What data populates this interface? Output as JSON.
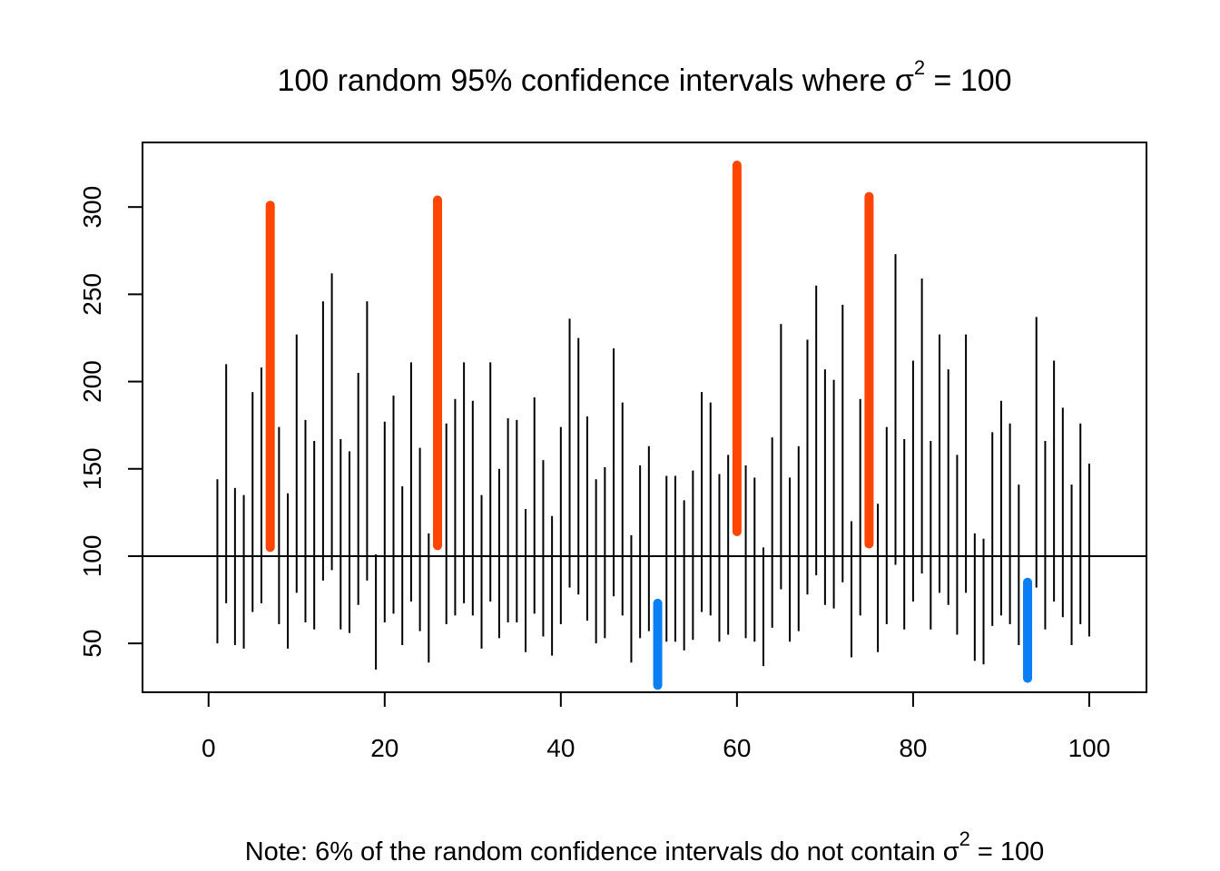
{
  "chart_data": {
    "type": "interval",
    "title": {
      "main": "100 random 95% confidence intervals where ",
      "symbol": "σ",
      "sup": "2",
      "rest": " = 100"
    },
    "note": {
      "main": "Note: 6% of the random confidence intervals do not contain ",
      "symbol": "σ",
      "sup": "2",
      "rest": " = 100"
    },
    "xlim": [
      -7.5,
      106.5
    ],
    "ylim": [
      22,
      337
    ],
    "x_ticks": [
      0,
      20,
      40,
      60,
      80,
      100
    ],
    "y_ticks": [
      50,
      100,
      150,
      200,
      250,
      300
    ],
    "reference_line": 100,
    "colors": {
      "contains": "#000000",
      "above": "#ff4500",
      "below": "#0a7ef5",
      "axis": "#000000"
    },
    "intervals": [
      [
        1,
        50,
        144
      ],
      [
        2,
        73,
        210
      ],
      [
        3,
        49,
        139
      ],
      [
        4,
        47,
        135
      ],
      [
        5,
        68,
        194
      ],
      [
        6,
        73,
        208
      ],
      [
        7,
        105,
        301
      ],
      [
        8,
        61,
        174
      ],
      [
        9,
        47,
        136
      ],
      [
        10,
        79,
        227
      ],
      [
        11,
        62,
        178
      ],
      [
        12,
        58,
        166
      ],
      [
        13,
        86,
        246
      ],
      [
        14,
        92,
        262
      ],
      [
        15,
        58,
        167
      ],
      [
        16,
        56,
        160
      ],
      [
        17,
        72,
        205
      ],
      [
        18,
        86,
        246
      ],
      [
        19,
        35,
        101
      ],
      [
        20,
        62,
        177
      ],
      [
        21,
        67,
        192
      ],
      [
        22,
        49,
        140
      ],
      [
        23,
        74,
        211
      ],
      [
        24,
        57,
        162
      ],
      [
        25,
        39,
        113
      ],
      [
        26,
        106,
        304
      ],
      [
        27,
        61,
        176
      ],
      [
        28,
        66,
        190
      ],
      [
        29,
        73,
        211
      ],
      [
        30,
        66,
        189
      ],
      [
        31,
        47,
        135
      ],
      [
        32,
        74,
        211
      ],
      [
        33,
        53,
        150
      ],
      [
        34,
        62,
        179
      ],
      [
        35,
        62,
        178
      ],
      [
        36,
        45,
        127
      ],
      [
        37,
        67,
        191
      ],
      [
        38,
        54,
        155
      ],
      [
        39,
        43,
        123
      ],
      [
        40,
        61,
        174
      ],
      [
        41,
        82,
        236
      ],
      [
        42,
        78,
        225
      ],
      [
        43,
        63,
        180
      ],
      [
        44,
        50,
        144
      ],
      [
        45,
        53,
        151
      ],
      [
        46,
        77,
        219
      ],
      [
        47,
        66,
        188
      ],
      [
        48,
        39,
        112
      ],
      [
        49,
        53,
        152
      ],
      [
        50,
        57,
        163
      ],
      [
        51,
        26,
        73
      ],
      [
        52,
        51,
        146
      ],
      [
        53,
        51,
        146
      ],
      [
        54,
        46,
        132
      ],
      [
        55,
        52,
        149
      ],
      [
        56,
        68,
        194
      ],
      [
        57,
        66,
        188
      ],
      [
        58,
        51,
        147
      ],
      [
        59,
        55,
        158
      ],
      [
        60,
        114,
        324
      ],
      [
        61,
        53,
        152
      ],
      [
        62,
        51,
        145
      ],
      [
        63,
        37,
        105
      ],
      [
        64,
        59,
        168
      ],
      [
        65,
        81,
        233
      ],
      [
        66,
        51,
        145
      ],
      [
        67,
        57,
        163
      ],
      [
        68,
        78,
        224
      ],
      [
        69,
        89,
        255
      ],
      [
        70,
        72,
        207
      ],
      [
        71,
        70,
        201
      ],
      [
        72,
        85,
        244
      ],
      [
        73,
        42,
        120
      ],
      [
        74,
        66,
        190
      ],
      [
        75,
        107,
        306
      ],
      [
        76,
        45,
        130
      ],
      [
        77,
        61,
        174
      ],
      [
        78,
        95,
        273
      ],
      [
        79,
        58,
        167
      ],
      [
        80,
        74,
        212
      ],
      [
        81,
        90,
        259
      ],
      [
        82,
        58,
        166
      ],
      [
        83,
        79,
        227
      ],
      [
        84,
        72,
        207
      ],
      [
        85,
        55,
        158
      ],
      [
        86,
        79,
        227
      ],
      [
        87,
        40,
        113
      ],
      [
        88,
        38,
        110
      ],
      [
        89,
        60,
        171
      ],
      [
        90,
        66,
        189
      ],
      [
        91,
        61,
        176
      ],
      [
        92,
        49,
        141
      ],
      [
        93,
        30,
        85
      ],
      [
        94,
        82,
        237
      ],
      [
        95,
        58,
        166
      ],
      [
        96,
        74,
        212
      ],
      [
        97,
        65,
        185
      ],
      [
        98,
        49,
        141
      ],
      [
        99,
        61,
        176
      ],
      [
        100,
        54,
        153
      ]
    ]
  }
}
